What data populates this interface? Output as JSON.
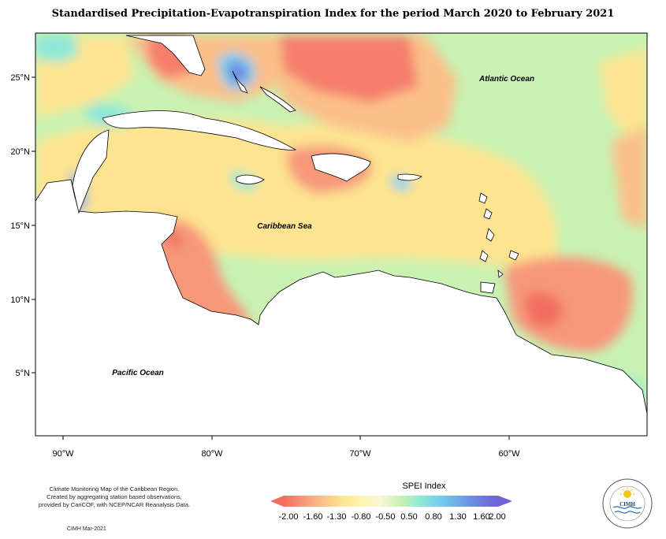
{
  "title": "Standardised Precipitation-Evapotranspiration Index for the period March 2020 to February 2021",
  "axes": {
    "latitude_labels": [
      "25°N",
      "20°N",
      "15°N",
      "10°N",
      "5°N"
    ],
    "longitude_labels": [
      "90°W",
      "80°W",
      "70°W",
      "60°W"
    ]
  },
  "places": {
    "atlantic": "Atlantic Ocean",
    "caribbean": "Caribbean Sea",
    "pacific": "Pacific Ocean"
  },
  "legend": {
    "title": "SPEI Index",
    "labels": [
      "-2.00",
      "-1.60",
      "-1.30",
      "-0.80",
      "-0.50",
      "0.50",
      "0.80",
      "1.30",
      "1.60",
      "2.00"
    ],
    "colors": [
      "#f26d5e",
      "#f7987a",
      "#fbc08a",
      "#fde490",
      "#fdf5b3",
      "#f7f7d8",
      "#c6f2b4",
      "#8ee8d8",
      "#76cdf0",
      "#6fa7e6",
      "#6d7fe0",
      "#6f63d8"
    ]
  },
  "footer": {
    "lines": [
      "Climate Monitoring Map of the Caribbean Region.",
      "Created by aggregating station based observations,",
      "provided by CariCOF, with NCEP/NCAR Reanalysis Data."
    ],
    "credit": "CIMH Mar-2021"
  },
  "logo": {
    "text": "CIMH",
    "ring_text": "Caribbean Institute for Meteorology and Hydrology",
    "sun_icon": "sun-icon"
  }
}
